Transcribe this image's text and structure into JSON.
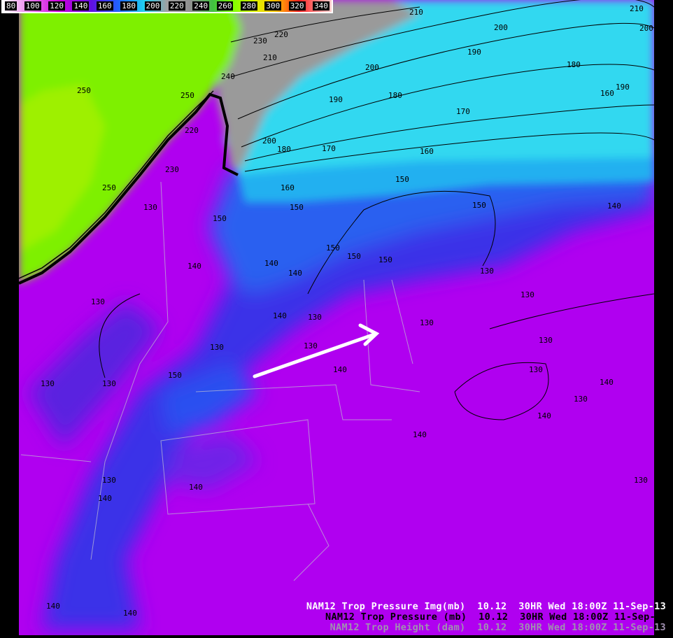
{
  "colorbar": {
    "labels": [
      "80",
      "100",
      "120",
      "140",
      "160",
      "180",
      "200",
      "220",
      "240",
      "260",
      "280",
      "300",
      "320",
      "340"
    ],
    "units": "mb"
  },
  "legend": [
    "NAM12 Trop Pressure Img(mb)  10.12  30HR Wed 18:00Z 11-Sep-13",
    "NAM12 Trop Pressure (mb)  10.12  30HR Wed 18:00Z 11-Sep-",
    "NAM12 Trop Height (dam)  10.12  30HR Wed 18:00Z 11-Sep-13"
  ],
  "contour_labels": [
    "250",
    "250",
    "250",
    "240",
    "230",
    "220",
    "210",
    "220",
    "230",
    "200",
    "210",
    "210",
    "200",
    "190",
    "190",
    "180",
    "200",
    "180",
    "190",
    "170",
    "160",
    "200",
    "180",
    "170",
    "160",
    "160",
    "150",
    "150",
    "150",
    "150",
    "150",
    "150",
    "150",
    "140",
    "140",
    "140",
    "140",
    "130",
    "130",
    "130",
    "130",
    "130",
    "130",
    "130",
    "130",
    "130",
    "130",
    "130",
    "130",
    "130",
    "140",
    "140",
    "140",
    "140",
    "140",
    "150",
    "130",
    "140",
    "140",
    "130",
    "140",
    "140"
  ],
  "colors": {
    "high_pressure": "#80f000",
    "mid": "#909090",
    "cyan": "#30e0f0",
    "blue": "#3040f0",
    "low_pressure": "#b000f0",
    "arrow": "#ffffff"
  }
}
